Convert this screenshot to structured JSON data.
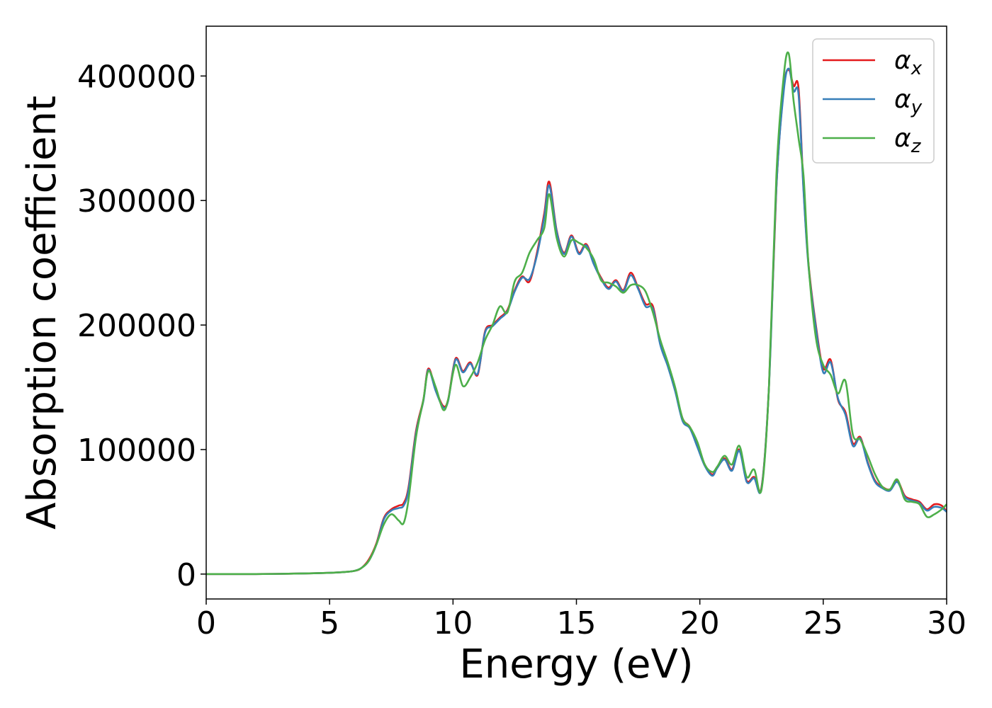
{
  "chart_data": {
    "type": "line",
    "title": "",
    "xlabel": "Energy (eV)",
    "ylabel": "Absorption coefficient",
    "xlim": [
      0,
      30
    ],
    "ylim": [
      -20000,
      440000
    ],
    "xticks": [
      0,
      5,
      10,
      15,
      20,
      25,
      30
    ],
    "yticks": [
      0,
      100000,
      200000,
      300000,
      400000
    ],
    "grid": false,
    "legend_position": "top-right",
    "series": [
      {
        "name": "αx",
        "label_main": "α",
        "label_sub": "x",
        "color": "#e41a1c",
        "x": [
          0,
          1,
          2,
          3,
          4,
          5,
          5.5,
          6,
          6.3,
          6.6,
          6.9,
          7.2,
          7.5,
          7.8,
          8.0,
          8.2,
          8.5,
          8.8,
          9.0,
          9.3,
          9.6,
          9.8,
          10.1,
          10.4,
          10.7,
          11.0,
          11.3,
          11.6,
          11.9,
          12.2,
          12.5,
          12.8,
          13.1,
          13.4,
          13.7,
          13.9,
          14.2,
          14.5,
          14.8,
          15.1,
          15.4,
          15.7,
          16.0,
          16.3,
          16.6,
          16.9,
          17.2,
          17.5,
          17.8,
          18.1,
          18.4,
          18.7,
          19.0,
          19.3,
          19.6,
          19.9,
          20.2,
          20.5,
          20.7,
          21.0,
          21.3,
          21.6,
          21.9,
          22.2,
          22.5,
          22.8,
          23.1,
          23.4,
          23.6,
          23.8,
          24.0,
          24.2,
          24.4,
          24.7,
          25.0,
          25.3,
          25.6,
          25.9,
          26.2,
          26.5,
          26.8,
          27.1,
          27.4,
          27.7,
          28.0,
          28.3,
          28.6,
          28.9,
          29.2,
          29.5,
          29.8,
          30.0
        ],
        "y": [
          0,
          0,
          0,
          200,
          500,
          1000,
          1500,
          2500,
          5000,
          12000,
          25000,
          45000,
          52000,
          55000,
          57000,
          70000,
          115000,
          140000,
          165000,
          148000,
          135000,
          140000,
          173000,
          163000,
          170000,
          160000,
          195000,
          200000,
          206000,
          212000,
          228000,
          239000,
          235000,
          258000,
          290000,
          315000,
          276000,
          258000,
          272000,
          258000,
          265000,
          250000,
          238000,
          230000,
          236000,
          228000,
          242000,
          230000,
          217000,
          215000,
          185000,
          168000,
          148000,
          125000,
          118000,
          103000,
          88000,
          80000,
          86000,
          93000,
          84000,
          100000,
          75000,
          78000,
          70000,
          150000,
          310000,
          390000,
          405000,
          392000,
          390000,
          310000,
          250000,
          200000,
          165000,
          172000,
          140000,
          130000,
          105000,
          110000,
          90000,
          75000,
          70000,
          68000,
          75000,
          63000,
          60000,
          58000,
          52000,
          56000,
          55000,
          50000
        ]
      },
      {
        "name": "αy",
        "label_main": "α",
        "label_sub": "y",
        "color": "#377eb8",
        "x": [
          0,
          1,
          2,
          3,
          4,
          5,
          5.5,
          6,
          6.3,
          6.6,
          6.9,
          7.2,
          7.5,
          7.8,
          8.0,
          8.2,
          8.5,
          8.8,
          9.0,
          9.3,
          9.6,
          9.8,
          10.1,
          10.4,
          10.7,
          11.0,
          11.3,
          11.6,
          11.9,
          12.2,
          12.5,
          12.8,
          13.1,
          13.4,
          13.7,
          13.9,
          14.2,
          14.5,
          14.8,
          15.1,
          15.4,
          15.7,
          16.0,
          16.3,
          16.6,
          16.9,
          17.2,
          17.5,
          17.8,
          18.1,
          18.4,
          18.7,
          19.0,
          19.3,
          19.6,
          19.9,
          20.2,
          20.5,
          20.7,
          21.0,
          21.3,
          21.6,
          21.9,
          22.2,
          22.5,
          22.8,
          23.1,
          23.4,
          23.6,
          23.8,
          24.0,
          24.2,
          24.4,
          24.7,
          25.0,
          25.3,
          25.6,
          25.9,
          26.2,
          26.5,
          26.8,
          27.1,
          27.4,
          27.7,
          28.0,
          28.3,
          28.6,
          28.9,
          29.2,
          29.5,
          29.8,
          30.0
        ],
        "y": [
          0,
          0,
          0,
          200,
          500,
          1000,
          1500,
          2500,
          5000,
          11000,
          24000,
          44000,
          51000,
          53000,
          55000,
          68000,
          113000,
          139000,
          164000,
          147000,
          134000,
          139000,
          172000,
          162000,
          169000,
          161000,
          194000,
          199000,
          205000,
          211000,
          227000,
          238000,
          237000,
          256000,
          287000,
          312000,
          275000,
          257000,
          271000,
          257000,
          264000,
          249000,
          237000,
          229000,
          235000,
          227000,
          240000,
          229000,
          215000,
          213000,
          184000,
          167000,
          147000,
          123000,
          117000,
          102000,
          87000,
          79000,
          85000,
          92000,
          83000,
          99000,
          74000,
          77000,
          69000,
          150000,
          310000,
          388000,
          406000,
          388000,
          385000,
          308000,
          248000,
          198000,
          162000,
          170000,
          141000,
          128000,
          103000,
          109000,
          89000,
          74000,
          69000,
          67000,
          74000,
          62000,
          59000,
          57000,
          51000,
          54000,
          53000,
          50000
        ]
      },
      {
        "name": "αz",
        "label_main": "α",
        "label_sub": "z",
        "color": "#4daf4a",
        "x": [
          0,
          1,
          2,
          3,
          4,
          5,
          5.5,
          6,
          6.3,
          6.6,
          6.9,
          7.2,
          7.5,
          7.8,
          8.0,
          8.2,
          8.5,
          8.8,
          9.0,
          9.3,
          9.6,
          9.8,
          10.1,
          10.4,
          10.7,
          11.0,
          11.3,
          11.6,
          11.9,
          12.2,
          12.5,
          12.8,
          13.1,
          13.4,
          13.7,
          13.9,
          14.2,
          14.5,
          14.8,
          15.1,
          15.4,
          15.7,
          16.0,
          16.3,
          16.6,
          16.9,
          17.2,
          17.5,
          17.8,
          18.1,
          18.4,
          18.7,
          19.0,
          19.3,
          19.6,
          19.9,
          20.2,
          20.5,
          20.7,
          21.0,
          21.3,
          21.6,
          21.9,
          22.2,
          22.5,
          22.8,
          23.1,
          23.4,
          23.6,
          23.8,
          24.0,
          24.2,
          24.4,
          24.7,
          25.0,
          25.3,
          25.6,
          25.9,
          26.2,
          26.5,
          26.8,
          27.1,
          27.4,
          27.7,
          28.0,
          28.3,
          28.6,
          28.9,
          29.2,
          29.5,
          29.8,
          30.0
        ],
        "y": [
          0,
          0,
          0,
          200,
          500,
          1000,
          1500,
          2500,
          5000,
          11000,
          24000,
          40000,
          48000,
          43000,
          41000,
          60000,
          110000,
          140000,
          163000,
          150000,
          132000,
          140000,
          168000,
          151000,
          158000,
          170000,
          188000,
          200000,
          215000,
          210000,
          235000,
          242000,
          258000,
          268000,
          278000,
          305000,
          270000,
          255000,
          268000,
          266000,
          262000,
          253000,
          236000,
          234000,
          231000,
          226000,
          232000,
          232000,
          227000,
          210000,
          188000,
          170000,
          150000,
          125000,
          118000,
          106000,
          88000,
          82000,
          86000,
          95000,
          88000,
          103000,
          78000,
          84000,
          68000,
          150000,
          320000,
          400000,
          418000,
          380000,
          350000,
          320000,
          250000,
          190000,
          168000,
          160000,
          145000,
          155000,
          112000,
          108000,
          95000,
          80000,
          70000,
          68000,
          76000,
          60000,
          58000,
          56000,
          46000,
          48000,
          52000,
          56000
        ]
      }
    ]
  }
}
